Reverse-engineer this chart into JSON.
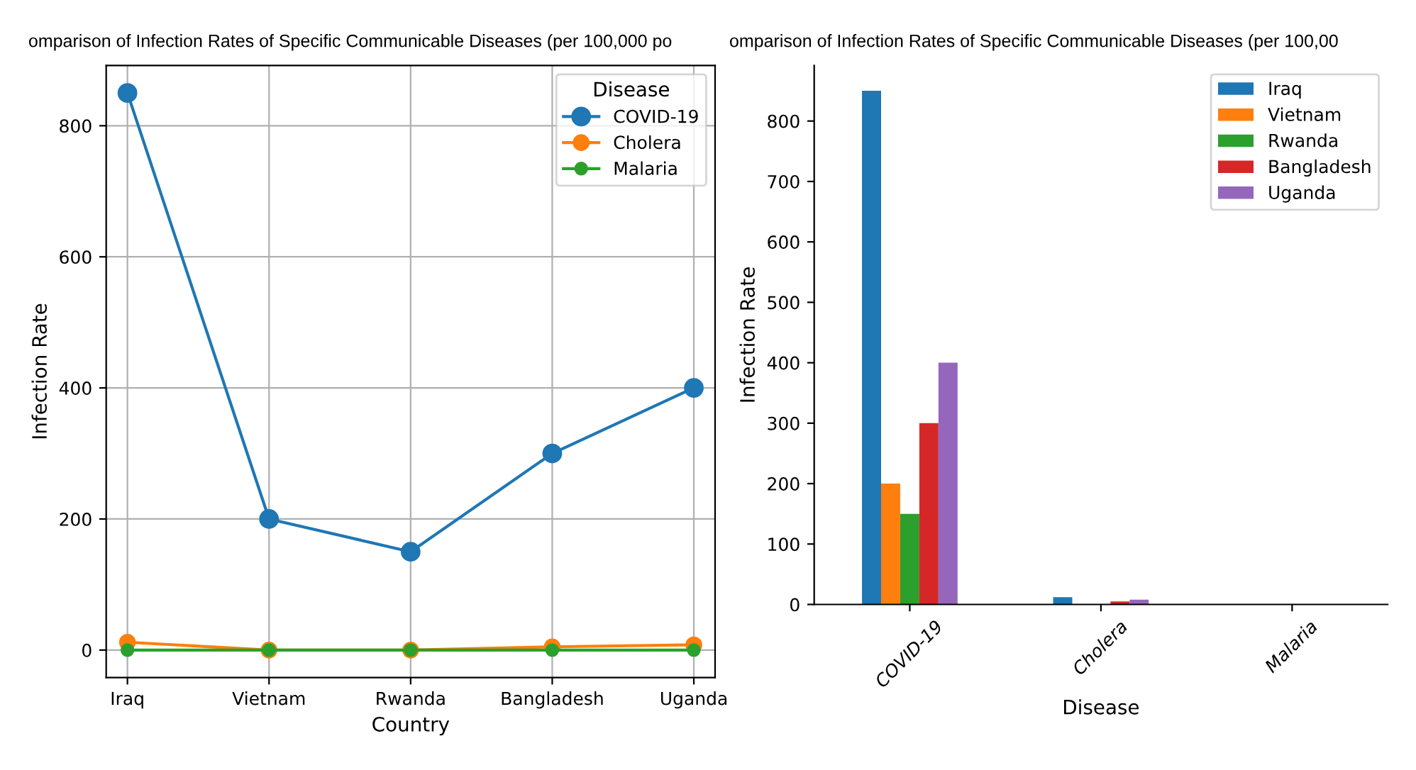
{
  "chart_data": [
    {
      "type": "line",
      "title": "omparison of Infection Rates of Specific Communicable Diseases (per 100,000 po",
      "xlabel": "Country",
      "ylabel": "Infection Rate",
      "legend_title": "Disease",
      "categories": [
        "Iraq",
        "Vietnam",
        "Rwanda",
        "Bangladesh",
        "Uganda"
      ],
      "series": [
        {
          "name": "COVID-19",
          "color": "#1f77b4",
          "values": [
            850,
            200,
            150,
            300,
            400
          ]
        },
        {
          "name": "Cholera",
          "color": "#ff7f0e",
          "values": [
            12,
            0,
            0,
            5,
            8
          ]
        },
        {
          "name": "Malaria",
          "color": "#2ca02c",
          "values": [
            0,
            0,
            0,
            0,
            0
          ]
        }
      ],
      "ylim": [
        -42,
        892
      ],
      "yticks": [
        0,
        200,
        400,
        600,
        800
      ],
      "grid": true,
      "legend": "top right",
      "marker": "circle"
    },
    {
      "type": "bar",
      "title": "omparison of Infection Rates of Specific Communicable Diseases (per 100,00",
      "xlabel": "Disease",
      "ylabel": "Infection Rate",
      "categories": [
        "COVID-19",
        "Cholera",
        "Malaria"
      ],
      "series": [
        {
          "name": "Iraq",
          "color": "#1f77b4",
          "values": [
            850,
            12,
            0
          ]
        },
        {
          "name": "Vietnam",
          "color": "#ff7f0e",
          "values": [
            200,
            0,
            0
          ]
        },
        {
          "name": "Rwanda",
          "color": "#2ca02c",
          "values": [
            150,
            0,
            0
          ]
        },
        {
          "name": "Bangladesh",
          "color": "#d62728",
          "values": [
            300,
            5,
            0
          ]
        },
        {
          "name": "Uganda",
          "color": "#9467bd",
          "values": [
            400,
            8,
            0
          ]
        }
      ],
      "ylim": [
        0,
        892
      ],
      "yticks": [
        0,
        100,
        200,
        300,
        400,
        500,
        600,
        700,
        800
      ],
      "grid": false,
      "legend": "top right"
    }
  ]
}
